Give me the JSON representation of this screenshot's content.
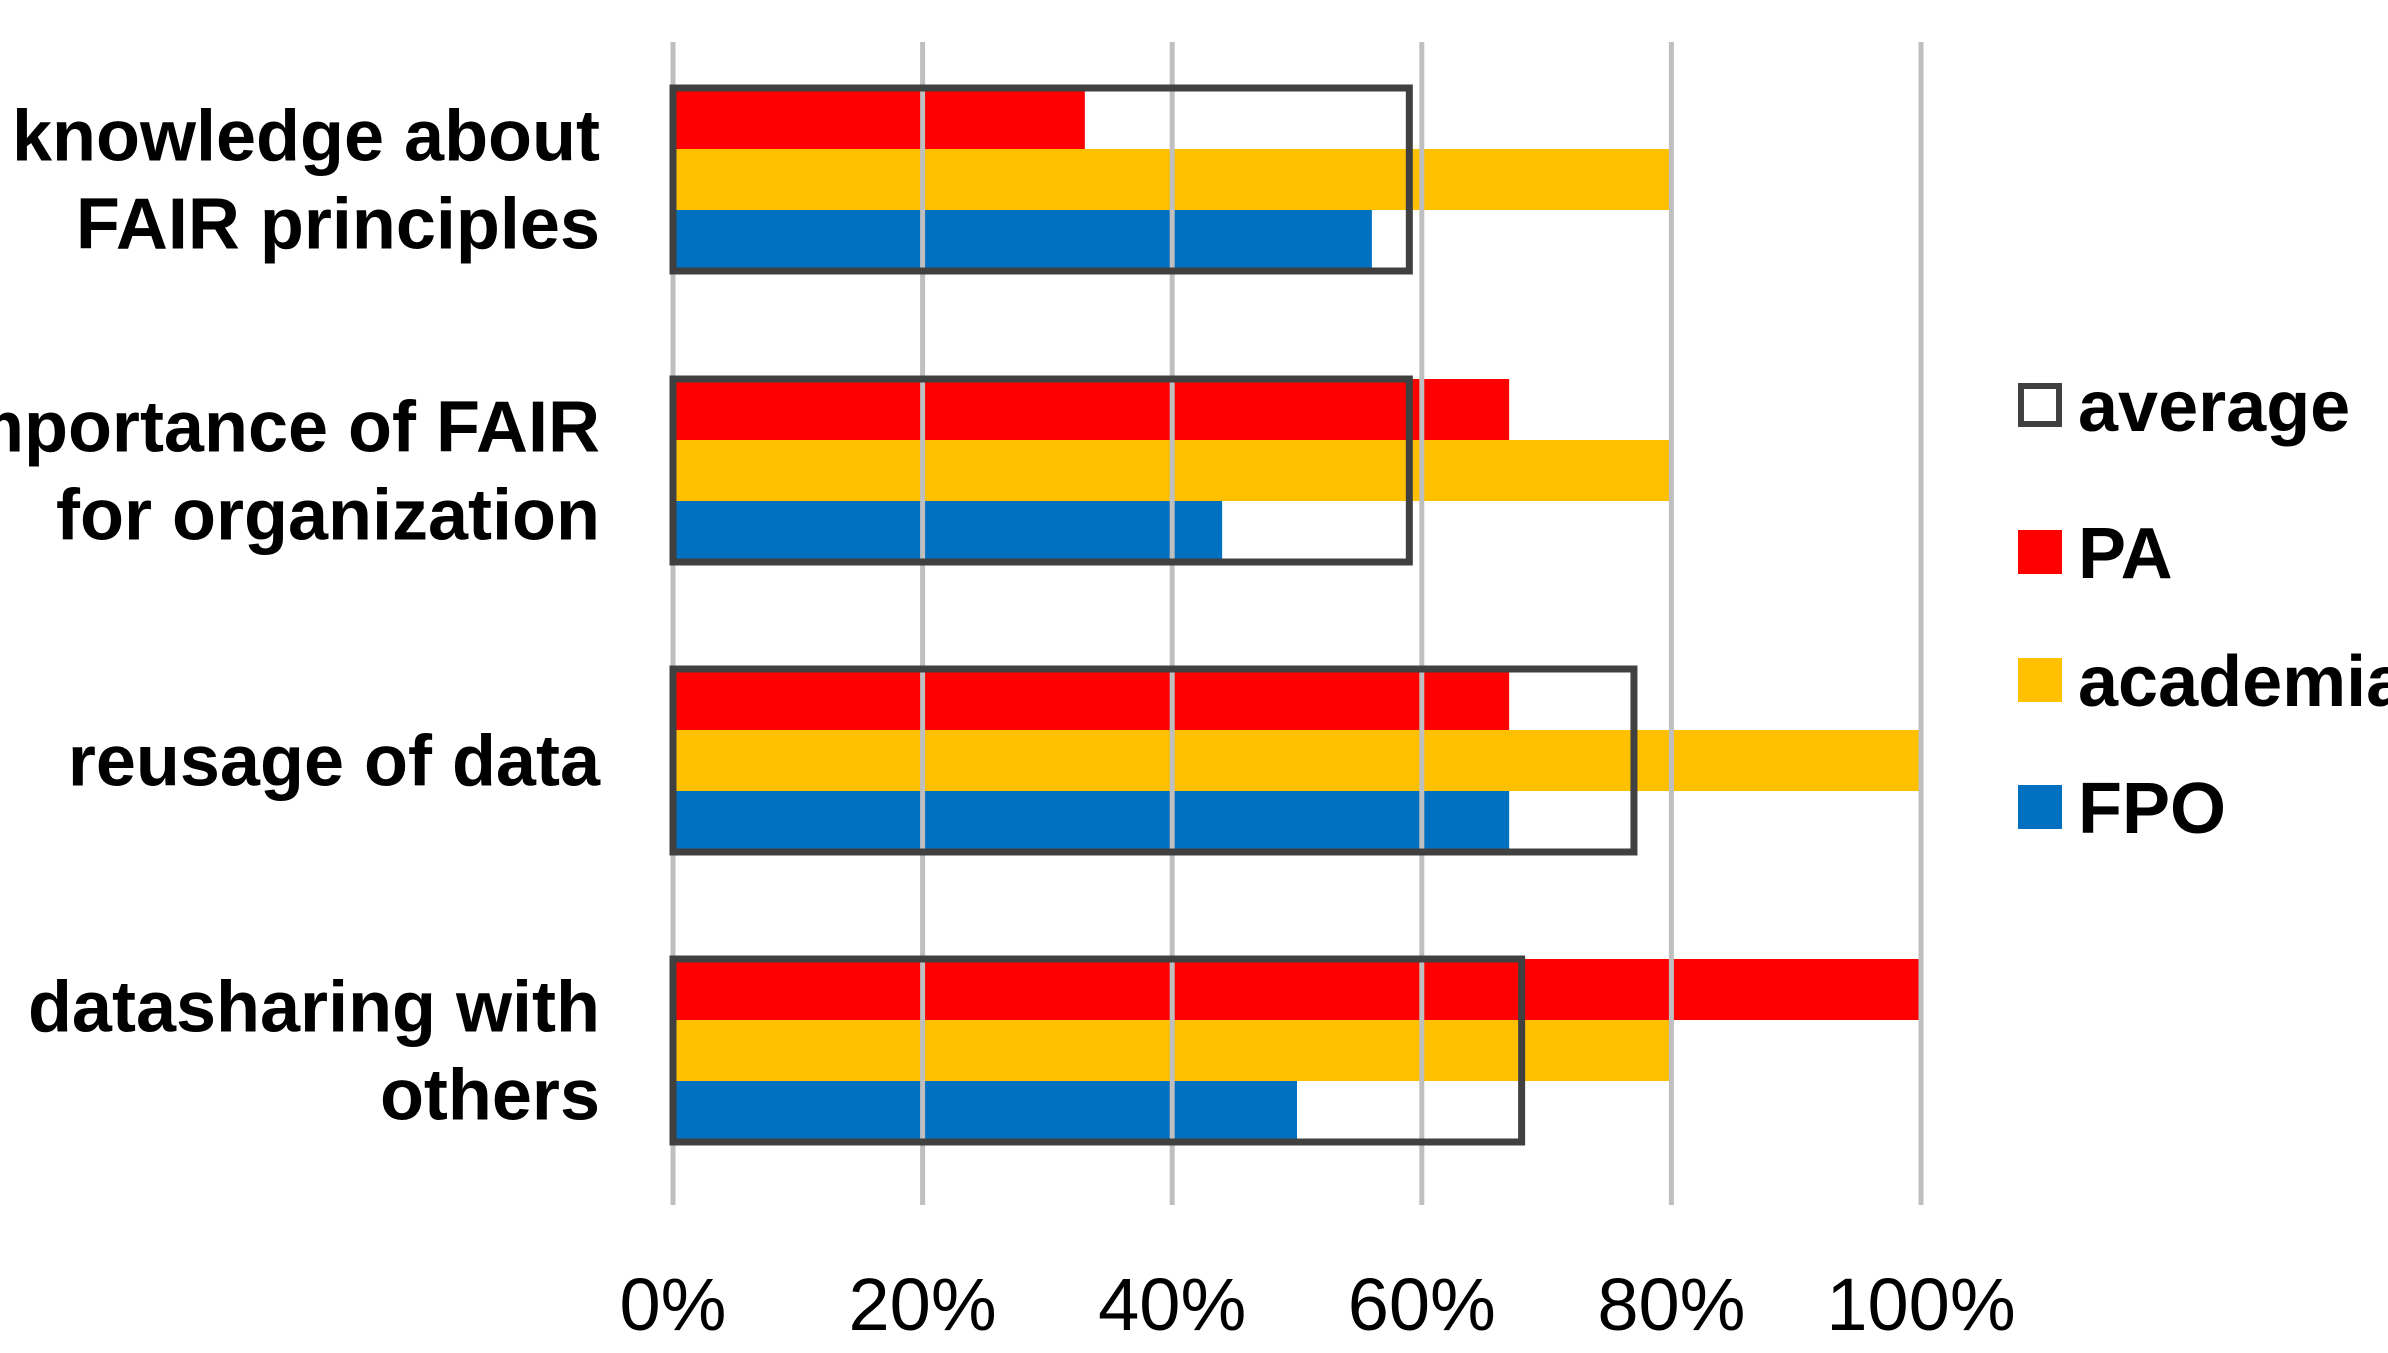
{
  "chart_data": {
    "type": "bar",
    "orientation": "horizontal",
    "title": "",
    "xlabel": "",
    "ylabel": "",
    "xlim": [
      0,
      100
    ],
    "x_ticks": [
      "0%",
      "20%",
      "40%",
      "60%",
      "80%",
      "100%"
    ],
    "grid": true,
    "legend_position": "right",
    "categories": [
      [
        "knowledge about",
        "FAIR principles"
      ],
      [
        "importance of FAIR",
        "for organization"
      ],
      [
        "reusage of data"
      ],
      [
        "datasharing with",
        "others"
      ]
    ],
    "series": [
      {
        "name": "PA",
        "color": "#ff0000",
        "values": [
          33,
          67,
          67,
          100
        ]
      },
      {
        "name": "academia",
        "color": "#ffc000",
        "values": [
          80,
          80,
          100,
          80
        ]
      },
      {
        "name": "FPO",
        "color": "#0070c0",
        "values": [
          56,
          44,
          67,
          50
        ]
      }
    ],
    "average": {
      "name": "average",
      "color": "#404040",
      "values": [
        59,
        59,
        77,
        68
      ]
    },
    "legend": [
      "average",
      "PA",
      "academia",
      "FPO"
    ]
  }
}
